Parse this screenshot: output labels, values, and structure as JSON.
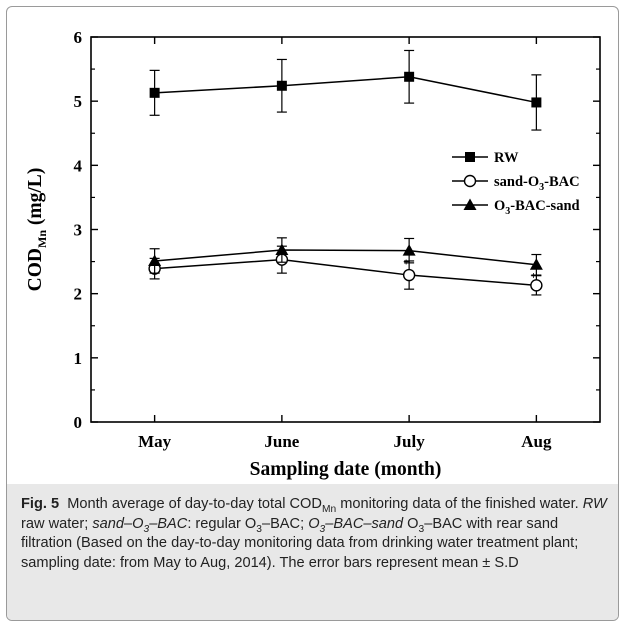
{
  "chart_data": {
    "type": "line",
    "categories": [
      "May",
      "June",
      "July",
      "Aug"
    ],
    "xlabel": "Sampling date (month)",
    "ylabel": "COD",
    "ylabel_sub": "Mn",
    "ylabel_unit": "(mg/L)",
    "ylim": [
      0,
      6
    ],
    "yticks": [
      "0",
      "1",
      "2",
      "3",
      "4",
      "5",
      "6"
    ],
    "grid": false,
    "legend_position": "right",
    "series": [
      {
        "name": "RW",
        "marker": "filled-square",
        "values": [
          5.13,
          5.24,
          5.38,
          4.98
        ],
        "err": [
          0.35,
          0.41,
          0.41,
          0.43
        ]
      },
      {
        "name": "sand-O3-BAC",
        "label_prefix": "sand-O",
        "label_sub": "3",
        "label_suffix": "-BAC",
        "marker": "open-circle",
        "values": [
          2.39,
          2.53,
          2.29,
          2.13
        ],
        "err": [
          0.16,
          0.21,
          0.22,
          0.15
        ]
      },
      {
        "name": "O3-BAC-sand",
        "label_prefix": "O",
        "label_sub": "3",
        "label_suffix": "-BAC-sand",
        "marker": "filled-triangle",
        "values": [
          2.51,
          2.68,
          2.67,
          2.45
        ],
        "err": [
          0.19,
          0.19,
          0.19,
          0.16
        ]
      }
    ],
    "annotations": [
      "+",
      "+"
    ]
  },
  "caption": {
    "fig_label": "Fig. 5",
    "t1": "Month average of day-to-day total COD",
    "t1_sub": "Mn",
    "t2": " monitoring data of the finished water. ",
    "rw_abbr": "RW",
    "rw_text": " raw water; ",
    "sand_abbr_a": "sand–O",
    "sand_abbr_sub": "3",
    "sand_abbr_b": "–BAC",
    "sand_text_a": ": regular O",
    "sand_text_sub": "3",
    "sand_text_b": "–BAC; ",
    "o3_abbr_a": "O",
    "o3_abbr_sub": "3",
    "o3_abbr_b": "–BAC–sand",
    "o3_text_a": " O",
    "o3_text_sub": "3",
    "o3_text_b": "–BAC with rear sand filtration (Based on the day-to-day monitoring data from drinking water treatment plant; sampling date: from May to Aug, 2014). The error bars represent mean ± S.D"
  }
}
